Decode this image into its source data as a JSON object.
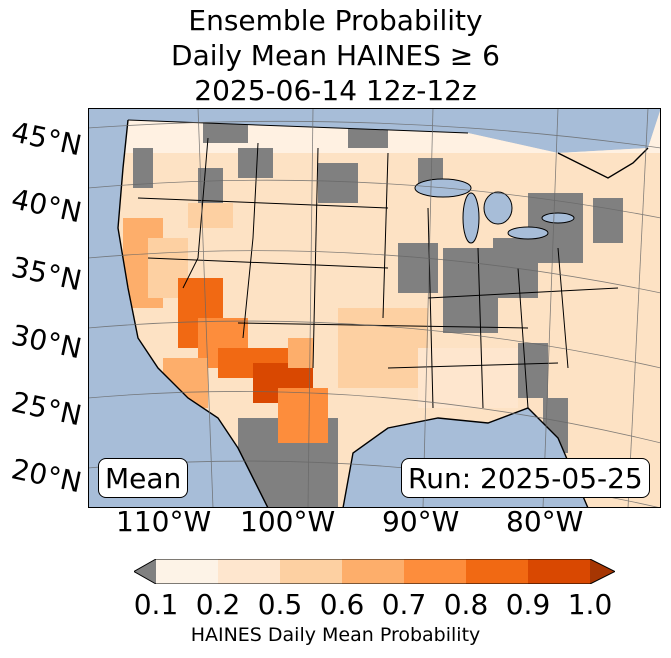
{
  "title": {
    "line1": "Ensemble Probability",
    "line2": "Daily Mean HAINES ≥ 6",
    "line3": "2025-06-14 12z-12z"
  },
  "latitude_labels": [
    "45°N",
    "40°N",
    "35°N",
    "30°N",
    "25°N",
    "20°N"
  ],
  "longitude_labels": [
    "110°W",
    "100°W",
    "90°W",
    "80°W"
  ],
  "mean_box": "Mean",
  "run_box": "Run: 2025-05-25",
  "colorbar": {
    "ticks": [
      "0.1",
      "0.2",
      "0.5",
      "0.6",
      "0.7",
      "0.8",
      "0.9",
      "1.0"
    ],
    "label": "HAINES Daily Mean Probability",
    "colors": [
      "#fdf3e7",
      "#fee6ce",
      "#fdd0a2",
      "#fdae6b",
      "#fd8d3c",
      "#f16913",
      "#d94801"
    ],
    "under_color": "#808080",
    "over_color": "#a63603"
  },
  "map_colors": {
    "ocean": "#a7bdd8",
    "land_base": "#fde2c4",
    "no_signal": "#808080",
    "border": "#000000",
    "graticule": "#666666"
  }
}
